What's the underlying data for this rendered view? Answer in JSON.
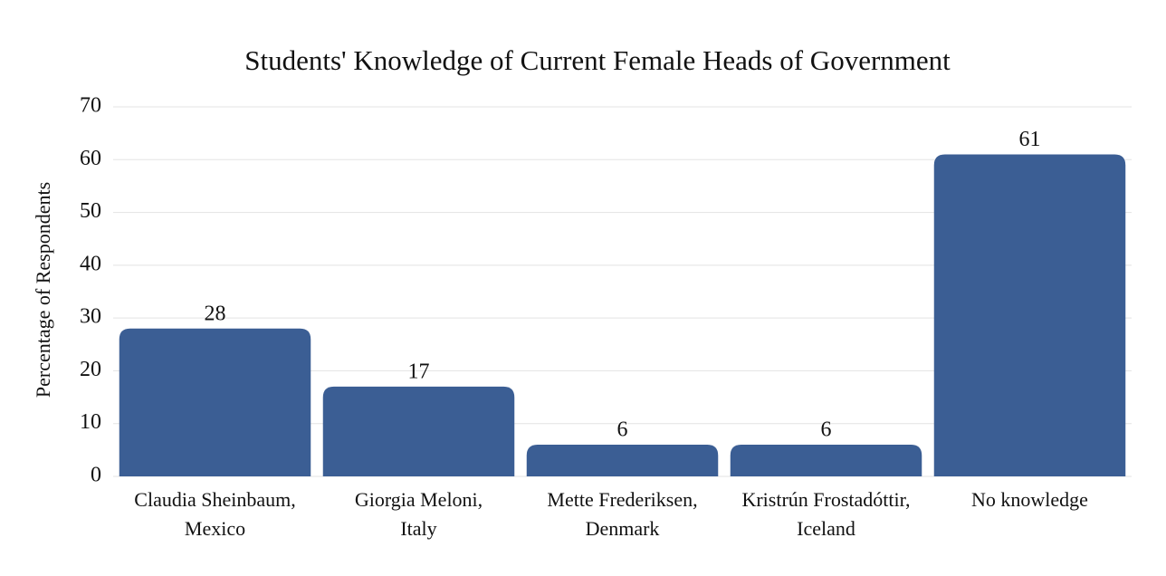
{
  "chart_data": {
    "type": "bar",
    "title": "Students' Knowledge of Current Female Heads of Government",
    "y_label": "Percentage of Respondents",
    "categories": [
      [
        "Claudia Sheinbaum,",
        "Mexico"
      ],
      [
        "Giorgia Meloni,",
        "Italy"
      ],
      [
        "Mette Frederiksen,",
        "Denmark"
      ],
      [
        "Kristrún Frostadóttir,",
        "Iceland"
      ],
      [
        "No knowledge"
      ]
    ],
    "values": [
      28,
      17,
      6,
      6,
      61
    ],
    "color": "#3b5e94",
    "ylim": [
      0,
      70
    ],
    "yticks": [
      0,
      10,
      20,
      30,
      40,
      50,
      60,
      70
    ],
    "grid": true
  }
}
